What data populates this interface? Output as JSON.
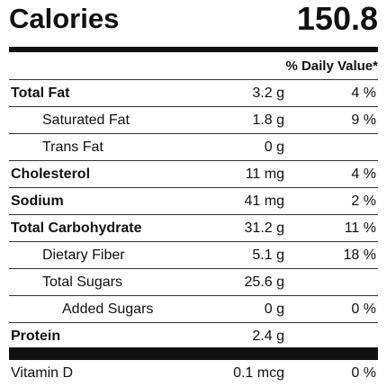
{
  "header": {
    "title": "Calories",
    "value": "150.8"
  },
  "daily_value_header": "% Daily Value*",
  "nutrients": [
    {
      "name": "Total Fat",
      "amount": "3.2 g",
      "dv": "4 %",
      "bold": true,
      "indent": 0
    },
    {
      "name": "Saturated Fat",
      "amount": "1.8 g",
      "dv": "9 %",
      "bold": false,
      "indent": 1
    },
    {
      "name": "Trans Fat",
      "amount": "0 g",
      "dv": "",
      "bold": false,
      "indent": 1
    },
    {
      "name": "Cholesterol",
      "amount": "11 mg",
      "dv": "4 %",
      "bold": true,
      "indent": 0
    },
    {
      "name": "Sodium",
      "amount": "41 mg",
      "dv": "2 %",
      "bold": true,
      "indent": 0
    },
    {
      "name": "Total Carbohydrate",
      "amount": "31.2 g",
      "dv": "11 %",
      "bold": true,
      "indent": 0
    },
    {
      "name": "Dietary Fiber",
      "amount": "5.1 g",
      "dv": "18 %",
      "bold": false,
      "indent": 1
    },
    {
      "name": "Total Sugars",
      "amount": "25.6 g",
      "dv": "",
      "bold": false,
      "indent": 1
    },
    {
      "name": "Added Sugars",
      "amount": "0 g",
      "dv": "0 %",
      "bold": false,
      "indent": 2
    },
    {
      "name": "Protein",
      "amount": "2.4 g",
      "dv": "",
      "bold": true,
      "indent": 0
    }
  ],
  "vitamins": [
    {
      "name": "Vitamin D",
      "amount": "0.1 mcg",
      "dv": "0 %"
    }
  ]
}
